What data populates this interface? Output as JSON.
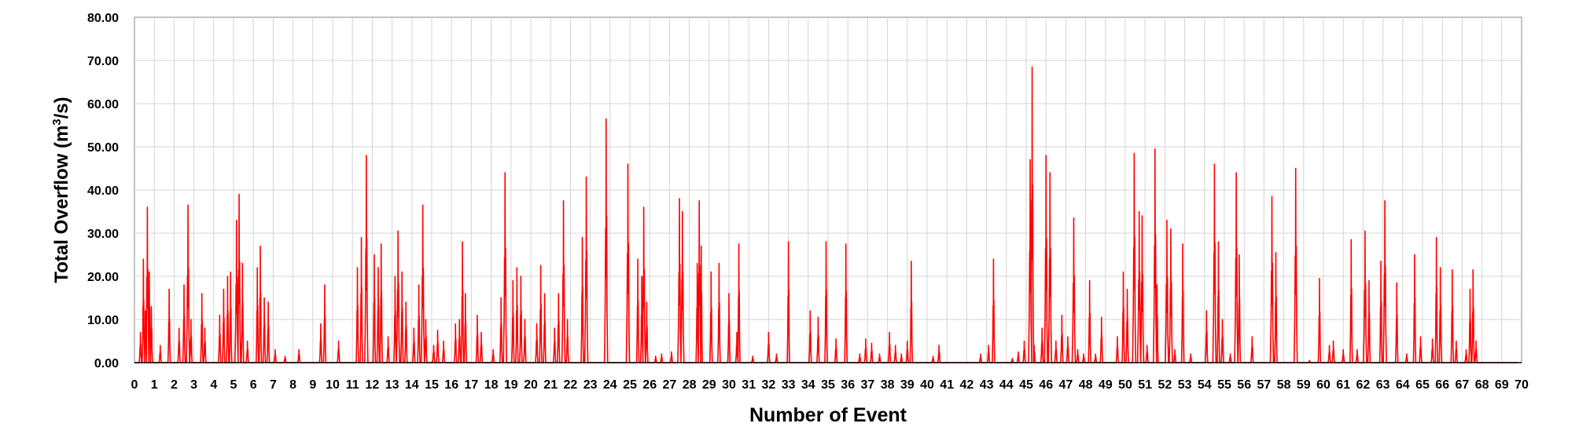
{
  "chart_data": {
    "type": "line",
    "title": "",
    "xlabel": "Number of Event",
    "ylabel_main": "Total Overflow (m",
    "ylabel_sup": "3",
    "ylabel_tail": "/s)",
    "xlim": [
      0,
      70
    ],
    "ylim": [
      0,
      80
    ],
    "y_ticks": [
      "0.00",
      "10.00",
      "20.00",
      "30.00",
      "40.00",
      "50.00",
      "60.00",
      "70.00",
      "80.00"
    ],
    "x_ticks": [
      "0",
      "1",
      "2",
      "3",
      "4",
      "5",
      "6",
      "7",
      "8",
      "9",
      "10",
      "11",
      "12",
      "13",
      "14",
      "15",
      "16",
      "17",
      "18",
      "19",
      "20",
      "21",
      "22",
      "23",
      "24",
      "25",
      "26",
      "27",
      "28",
      "29",
      "30",
      "31",
      "32",
      "33",
      "34",
      "35",
      "36",
      "37",
      "38",
      "39",
      "40",
      "41",
      "42",
      "43",
      "44",
      "45",
      "46",
      "47",
      "48",
      "49",
      "50",
      "51",
      "52",
      "53",
      "54",
      "55",
      "56",
      "57",
      "58",
      "59",
      "60",
      "61",
      "62",
      "63",
      "64",
      "65",
      "66",
      "67",
      "68",
      "69",
      "70"
    ],
    "grid": true,
    "line_color": "#ff0000",
    "series": [
      {
        "peaks": [
          [
            0.3,
            7
          ],
          [
            0.45,
            24
          ],
          [
            0.55,
            12
          ],
          [
            0.65,
            36
          ],
          [
            0.75,
            21
          ],
          [
            0.85,
            13
          ],
          [
            1.3,
            4
          ],
          [
            1.75,
            17
          ],
          [
            2.25,
            8
          ],
          [
            2.5,
            18
          ],
          [
            2.7,
            36.5
          ],
          [
            2.85,
            10
          ],
          [
            3.4,
            16
          ],
          [
            3.55,
            8
          ],
          [
            4.3,
            11
          ],
          [
            4.5,
            17
          ],
          [
            4.7,
            20
          ],
          [
            4.85,
            21
          ],
          [
            5.15,
            33
          ],
          [
            5.28,
            39
          ],
          [
            5.45,
            23
          ],
          [
            5.7,
            5
          ],
          [
            6.2,
            22
          ],
          [
            6.35,
            27
          ],
          [
            6.55,
            15
          ],
          [
            6.75,
            14
          ],
          [
            7.1,
            3
          ],
          [
            7.6,
            1.5
          ],
          [
            8.3,
            3
          ],
          [
            9.4,
            9
          ],
          [
            9.6,
            18
          ],
          [
            10.3,
            5
          ],
          [
            11.25,
            22
          ],
          [
            11.45,
            29
          ],
          [
            11.7,
            48
          ],
          [
            12.1,
            25
          ],
          [
            12.3,
            22
          ],
          [
            12.45,
            27.5
          ],
          [
            12.8,
            6
          ],
          [
            13.15,
            20
          ],
          [
            13.3,
            30.5
          ],
          [
            13.5,
            21
          ],
          [
            13.7,
            14
          ],
          [
            14.1,
            8
          ],
          [
            14.35,
            18
          ],
          [
            14.55,
            36.5
          ],
          [
            14.7,
            10
          ],
          [
            15.1,
            4
          ],
          [
            15.3,
            7.5
          ],
          [
            15.6,
            5
          ],
          [
            16.2,
            9
          ],
          [
            16.4,
            10
          ],
          [
            16.55,
            28
          ],
          [
            16.7,
            16
          ],
          [
            17.3,
            11
          ],
          [
            17.5,
            7
          ],
          [
            18.1,
            3
          ],
          [
            18.5,
            15
          ],
          [
            18.7,
            44
          ],
          [
            19.1,
            19
          ],
          [
            19.3,
            22
          ],
          [
            19.5,
            20
          ],
          [
            19.7,
            10
          ],
          [
            20.3,
            9
          ],
          [
            20.5,
            22.5
          ],
          [
            20.7,
            16
          ],
          [
            21.2,
            8
          ],
          [
            21.4,
            16
          ],
          [
            21.65,
            37.5
          ],
          [
            21.85,
            10
          ],
          [
            22.6,
            29
          ],
          [
            22.8,
            43
          ],
          [
            23.8,
            56.5
          ],
          [
            24.9,
            46
          ],
          [
            25.4,
            24
          ],
          [
            25.6,
            20
          ],
          [
            25.7,
            36
          ],
          [
            25.85,
            14
          ],
          [
            26.3,
            1.5
          ],
          [
            26.6,
            2
          ],
          [
            27.1,
            2.5
          ],
          [
            27.5,
            38
          ],
          [
            27.65,
            35
          ],
          [
            28.4,
            23
          ],
          [
            28.5,
            37.5
          ],
          [
            28.6,
            27
          ],
          [
            29.1,
            21
          ],
          [
            29.5,
            23
          ],
          [
            30.0,
            16
          ],
          [
            30.4,
            7
          ],
          [
            30.5,
            27.5
          ],
          [
            31.2,
            1.5
          ],
          [
            32.0,
            7
          ],
          [
            32.4,
            2
          ],
          [
            33.0,
            28
          ],
          [
            34.1,
            12
          ],
          [
            34.5,
            10.5
          ],
          [
            34.9,
            28
          ],
          [
            35.4,
            5.5
          ],
          [
            35.9,
            27.5
          ],
          [
            36.6,
            2
          ],
          [
            36.9,
            5.5
          ],
          [
            37.2,
            4.5
          ],
          [
            37.6,
            2
          ],
          [
            38.1,
            7
          ],
          [
            38.4,
            4
          ],
          [
            38.7,
            2
          ],
          [
            39.0,
            5
          ],
          [
            39.2,
            23.5
          ],
          [
            40.3,
            1.5
          ],
          [
            40.6,
            4
          ],
          [
            42.7,
            2
          ],
          [
            43.1,
            4
          ],
          [
            43.35,
            24
          ],
          [
            44.3,
            1
          ],
          [
            44.6,
            2.5
          ],
          [
            44.9,
            5
          ],
          [
            45.2,
            47
          ],
          [
            45.3,
            68.5
          ],
          [
            45.4,
            4
          ],
          [
            45.8,
            8
          ],
          [
            46.0,
            48
          ],
          [
            46.2,
            44
          ],
          [
            46.5,
            5
          ],
          [
            46.8,
            11
          ],
          [
            47.1,
            6
          ],
          [
            47.4,
            33.5
          ],
          [
            47.6,
            3
          ],
          [
            47.9,
            2
          ],
          [
            48.2,
            19
          ],
          [
            48.5,
            2
          ],
          [
            48.8,
            10.5
          ],
          [
            49.6,
            6
          ],
          [
            49.9,
            21
          ],
          [
            50.1,
            17
          ],
          [
            50.45,
            48.5
          ],
          [
            50.7,
            35
          ],
          [
            50.85,
            34
          ],
          [
            51.1,
            4
          ],
          [
            51.5,
            49.5
          ],
          [
            51.6,
            18
          ],
          [
            52.1,
            33
          ],
          [
            52.3,
            31
          ],
          [
            52.5,
            3
          ],
          [
            52.9,
            27.5
          ],
          [
            53.3,
            2
          ],
          [
            54.1,
            12
          ],
          [
            54.5,
            46
          ],
          [
            54.7,
            28
          ],
          [
            54.9,
            10
          ],
          [
            55.3,
            2
          ],
          [
            55.6,
            44
          ],
          [
            55.75,
            25
          ],
          [
            56.4,
            6
          ],
          [
            57.4,
            38.5
          ],
          [
            57.6,
            25.5
          ],
          [
            58.6,
            45
          ],
          [
            59.3,
            0.5
          ],
          [
            59.8,
            19.5
          ],
          [
            60.3,
            4
          ],
          [
            60.5,
            5
          ],
          [
            61.0,
            3
          ],
          [
            61.4,
            28.5
          ],
          [
            61.7,
            3
          ],
          [
            62.1,
            30.5
          ],
          [
            62.3,
            19
          ],
          [
            62.9,
            23.5
          ],
          [
            63.1,
            37.5
          ],
          [
            63.7,
            18.5
          ],
          [
            64.2,
            2
          ],
          [
            64.6,
            25
          ],
          [
            64.9,
            6
          ],
          [
            65.5,
            5.5
          ],
          [
            65.7,
            29
          ],
          [
            65.9,
            22
          ],
          [
            66.5,
            21.5
          ],
          [
            66.7,
            5
          ],
          [
            67.2,
            3
          ],
          [
            67.4,
            17
          ],
          [
            67.55,
            21.5
          ],
          [
            67.7,
            5
          ]
        ]
      }
    ]
  }
}
